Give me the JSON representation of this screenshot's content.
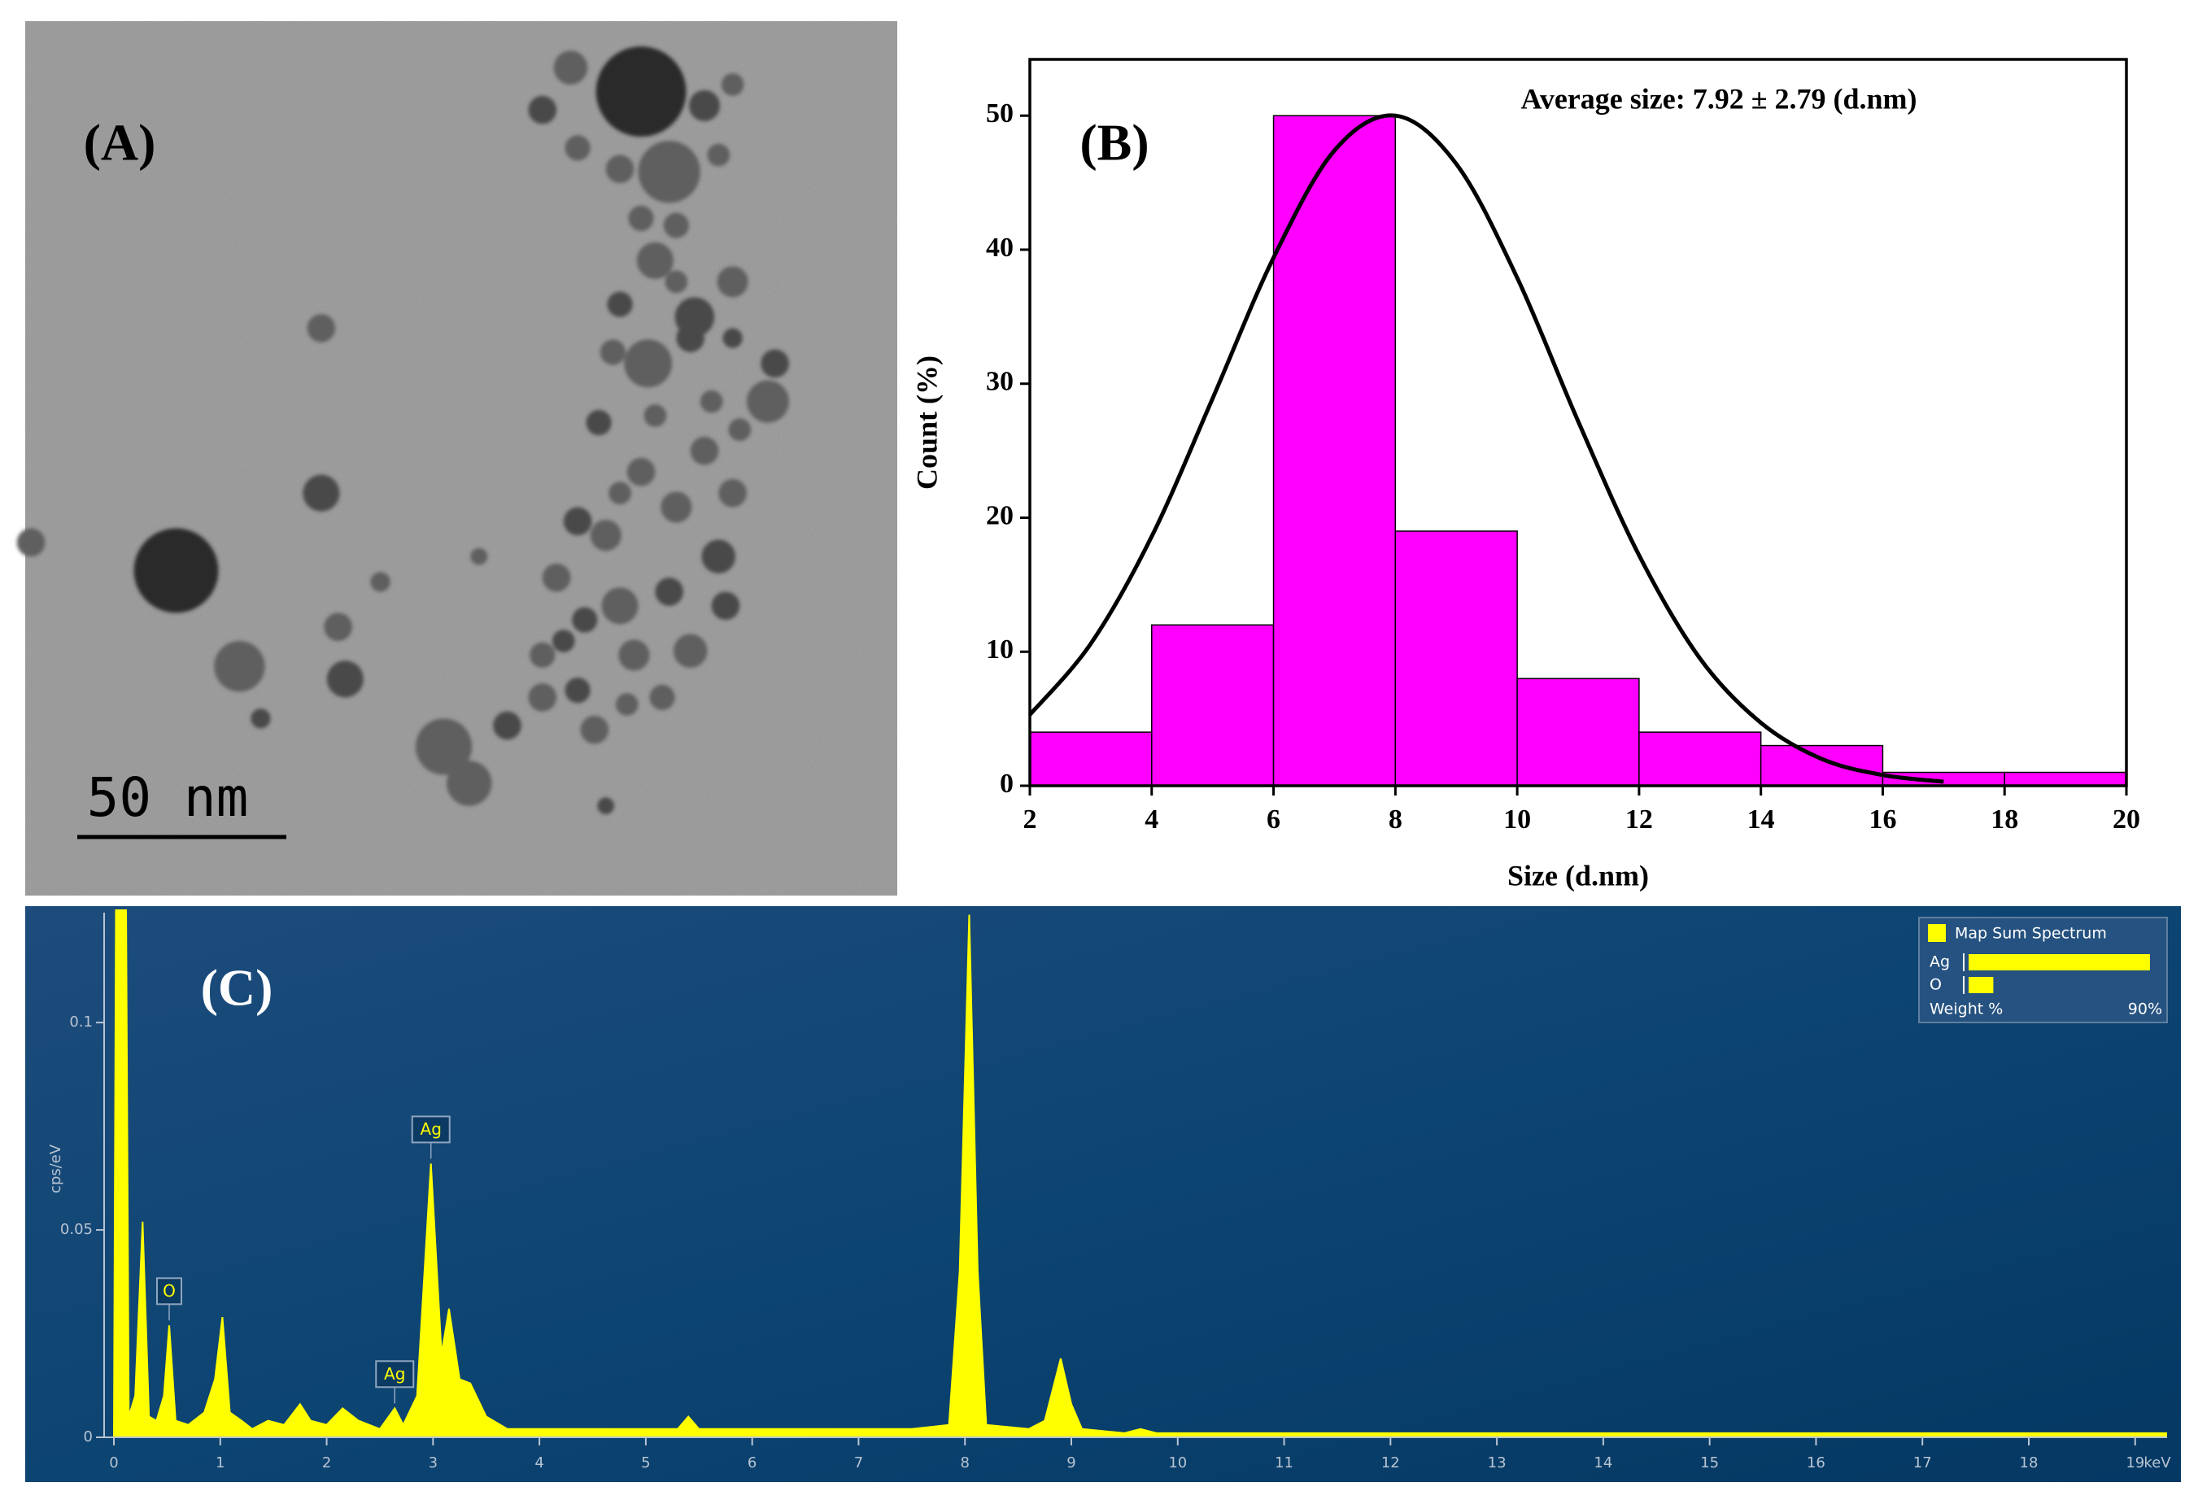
{
  "image_panel": {
    "label": "(A)",
    "scale_bar": "50 nm"
  },
  "chart_data": [
    {
      "type": "histogram",
      "panel_label": "(B)",
      "annotation": "Average size: 7.92 ± 2.79 (d.nm)",
      "xlabel": "Size (d.nm)",
      "ylabel": "Count (%)",
      "bins": [
        2,
        4,
        6,
        8,
        10,
        12,
        14,
        16,
        18,
        20
      ],
      "values": [
        4,
        12,
        50,
        19,
        8,
        4,
        3,
        1,
        1
      ],
      "color": "#ff00ff",
      "edgecolor": "#000000",
      "xlim": [
        2,
        20
      ],
      "xticks": [
        2,
        4,
        6,
        8,
        10,
        12,
        14,
        16,
        18,
        20
      ],
      "ylim": [
        0,
        54.2
      ],
      "yticks": [
        0,
        10,
        20,
        30,
        40,
        50
      ],
      "fit": {
        "color": "#000000",
        "x": [
          2,
          3,
          4,
          5,
          6,
          7,
          8,
          9,
          10,
          11,
          12,
          13,
          14,
          15,
          16,
          17
        ],
        "values": [
          5.3,
          10.6,
          18.6,
          28.9,
          39.4,
          47.4,
          50.0,
          46.4,
          37.9,
          27.2,
          17.2,
          9.5,
          4.7,
          2.0,
          0.8,
          0.3
        ]
      }
    },
    {
      "type": "area",
      "panel_label": "(C)",
      "ylabel": "cps/eV",
      "xunit": "keV",
      "color": "#ffff00",
      "x": [
        0.0,
        0.03,
        0.1,
        0.14,
        0.2,
        0.27,
        0.33,
        0.4,
        0.47,
        0.52,
        0.58,
        0.7,
        0.85,
        0.95,
        1.02,
        1.09,
        1.2,
        1.3,
        1.45,
        1.6,
        1.75,
        1.85,
        2.0,
        2.15,
        2.3,
        2.5,
        2.64,
        2.72,
        2.85,
        2.98,
        3.08,
        3.15,
        3.25,
        3.35,
        3.5,
        3.7,
        4.0,
        4.5,
        5.0,
        5.3,
        5.4,
        5.5,
        6.0,
        6.5,
        7.0,
        7.5,
        7.85,
        7.95,
        8.04,
        8.12,
        8.2,
        8.6,
        8.75,
        8.9,
        9.0,
        9.1,
        9.5,
        9.65,
        9.8,
        11,
        13,
        15,
        17,
        19.3
      ],
      "values": [
        0.0,
        0.2,
        0.2,
        0.005,
        0.01,
        0.052,
        0.005,
        0.004,
        0.01,
        0.027,
        0.004,
        0.003,
        0.006,
        0.014,
        0.029,
        0.006,
        0.004,
        0.002,
        0.004,
        0.003,
        0.008,
        0.004,
        0.003,
        0.007,
        0.004,
        0.002,
        0.007,
        0.003,
        0.01,
        0.066,
        0.02,
        0.031,
        0.014,
        0.013,
        0.005,
        0.002,
        0.002,
        0.002,
        0.002,
        0.002,
        0.005,
        0.002,
        0.002,
        0.002,
        0.002,
        0.002,
        0.003,
        0.04,
        0.126,
        0.04,
        0.003,
        0.002,
        0.004,
        0.019,
        0.008,
        0.002,
        0.001,
        0.002,
        0.001,
        0.001,
        0.001,
        0.001,
        0.001,
        0.001
      ],
      "xlim": [
        0,
        19.3
      ],
      "xticks": [
        0,
        1,
        2,
        3,
        4,
        5,
        6,
        7,
        8,
        9,
        10,
        11,
        12,
        13,
        14,
        15,
        16,
        17,
        18,
        19
      ],
      "ylim": [
        0,
        0.1265
      ],
      "yticks": [
        0,
        0.05,
        0.1
      ],
      "annotations": [
        {
          "text": "O",
          "x": 0.52,
          "y": 0.027
        },
        {
          "text": "Ag",
          "x": 2.64,
          "y": 0.007
        },
        {
          "text": "Ag",
          "x": 2.98,
          "y": 0.066
        }
      ],
      "legend": {
        "title": "Map Sum Spectrum",
        "entries": [
          {
            "name": "Ag",
            "value": 88
          },
          {
            "name": "O",
            "value": 12
          }
        ],
        "footer": "Weight %",
        "scale": {
          "value": 90,
          "label": "90%"
        }
      }
    }
  ]
}
